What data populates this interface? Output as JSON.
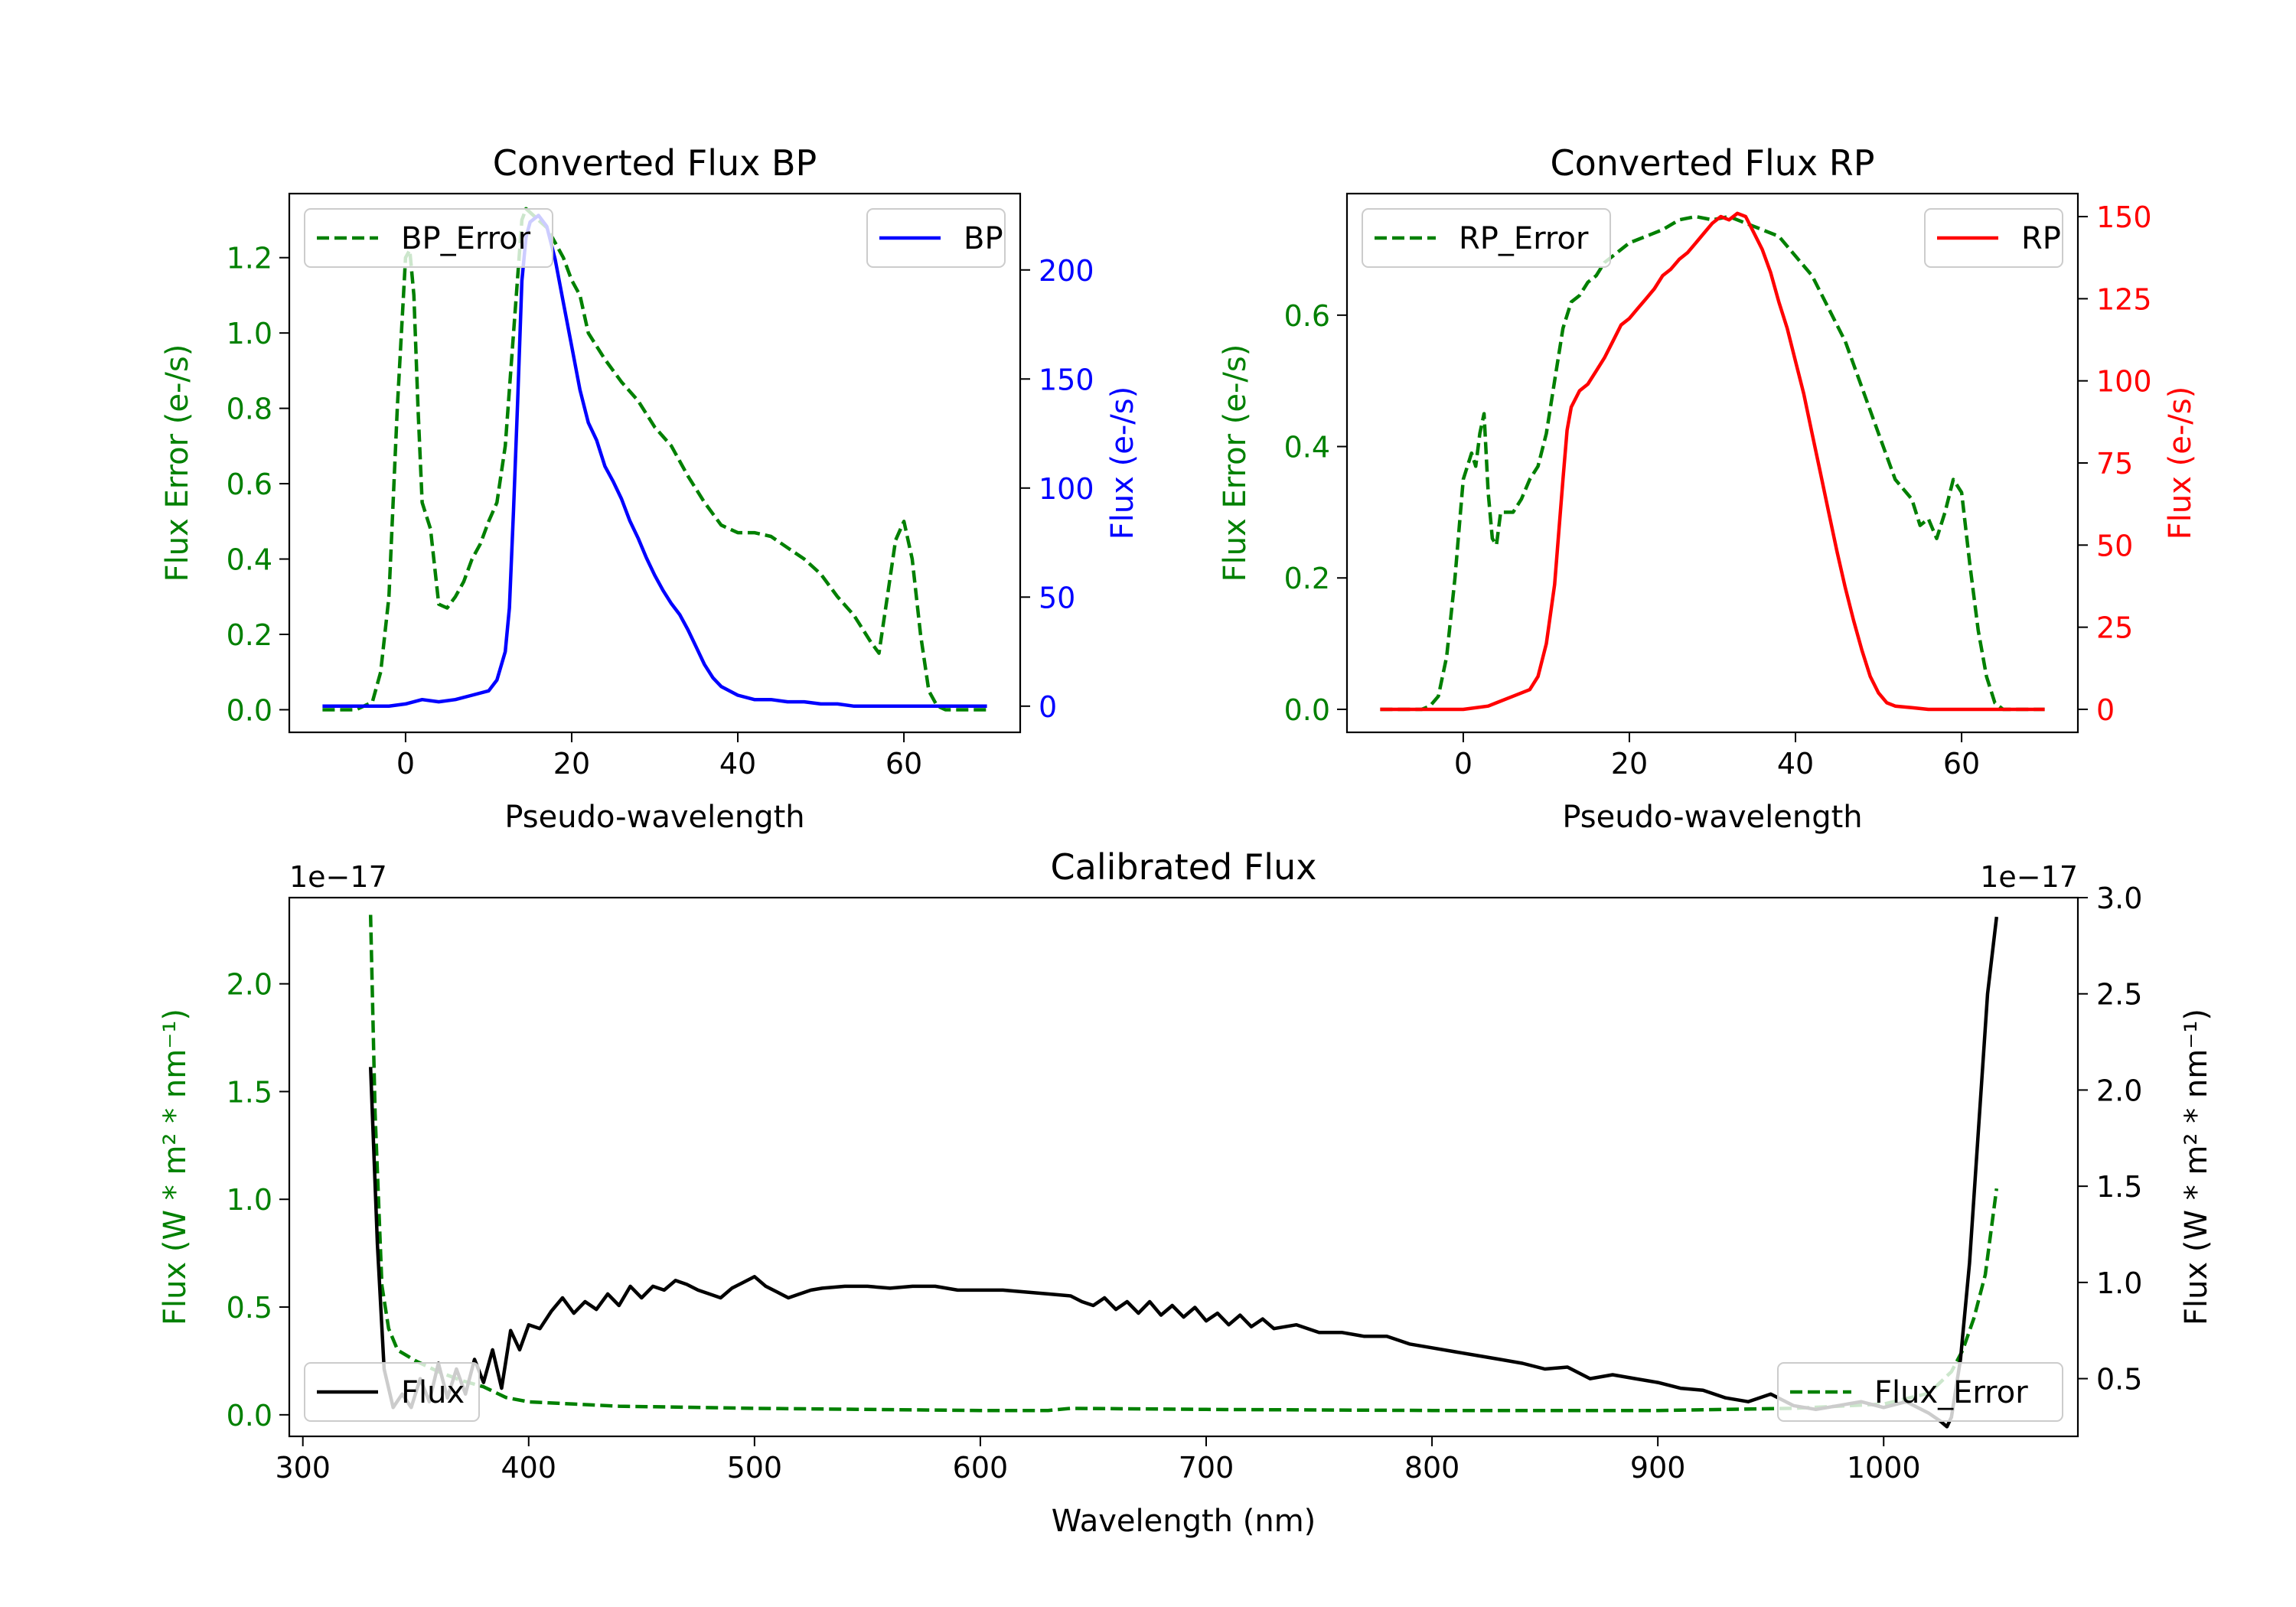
{
  "colors": {
    "error": "#008000",
    "bp": "#0000ff",
    "rp": "#ff0000",
    "flux": "#000000",
    "axis": "#000000"
  },
  "chart_data": [
    {
      "type": "line",
      "title": "Converted Flux BP",
      "xlabel": "Pseudo-wavelength",
      "ylabel_left": "Flux Error (e-/s)",
      "ylabel_right": "Flux (e-/s)",
      "xlim": [
        -14,
        74
      ],
      "xticks": [
        0,
        20,
        40,
        60
      ],
      "ylim_left": [
        -0.06,
        1.37
      ],
      "yticks_left": [
        0.0,
        0.2,
        0.4,
        0.6,
        0.8,
        1.0,
        1.2
      ],
      "ylim_right": [
        -12,
        235
      ],
      "yticks_right": [
        0,
        50,
        100,
        150,
        200
      ],
      "series": [
        {
          "name": "BP_Error",
          "axis": "left",
          "style": "dashed",
          "color": "#008000",
          "x": [
            -10,
            -6,
            -4,
            -3,
            -2,
            -1,
            0,
            0.5,
            1,
            1.5,
            2,
            3,
            4,
            5,
            6,
            7,
            8,
            9,
            10,
            11,
            12,
            13,
            14,
            14.5,
            15,
            16,
            17,
            18,
            19,
            20,
            21,
            22,
            24,
            26,
            28,
            30,
            32,
            34,
            36,
            38,
            40,
            42,
            44,
            46,
            48,
            50,
            52,
            54,
            56,
            57,
            58,
            59,
            60,
            61,
            62,
            63,
            64,
            65,
            66,
            68,
            70
          ],
          "y": [
            0,
            0,
            0.02,
            0.1,
            0.3,
            0.8,
            1.2,
            1.22,
            1.1,
            0.8,
            0.55,
            0.48,
            0.28,
            0.27,
            0.3,
            0.34,
            0.4,
            0.44,
            0.5,
            0.55,
            0.7,
            1.0,
            1.3,
            1.33,
            1.32,
            1.3,
            1.28,
            1.24,
            1.2,
            1.14,
            1.1,
            1.0,
            0.93,
            0.87,
            0.82,
            0.75,
            0.7,
            0.62,
            0.55,
            0.49,
            0.47,
            0.47,
            0.46,
            0.43,
            0.4,
            0.36,
            0.3,
            0.25,
            0.18,
            0.15,
            0.3,
            0.45,
            0.5,
            0.4,
            0.2,
            0.05,
            0.01,
            0,
            0,
            0,
            0
          ]
        },
        {
          "name": "BP",
          "axis": "right",
          "style": "solid",
          "color": "#0000ff",
          "x": [
            -10,
            -4,
            -2,
            0,
            2,
            4,
            6,
            8,
            10,
            11,
            12,
            12.5,
            13,
            13.5,
            14,
            14.5,
            15,
            16,
            17,
            18,
            19,
            20,
            21,
            22,
            23,
            24,
            25,
            26,
            27,
            28,
            29,
            30,
            31,
            32,
            33,
            34,
            35,
            36,
            37,
            38,
            40,
            42,
            44,
            46,
            48,
            50,
            52,
            54,
            56,
            58,
            60,
            62,
            64,
            66,
            68,
            70
          ],
          "y": [
            0,
            0,
            0,
            1,
            3,
            2,
            3,
            5,
            7,
            12,
            25,
            45,
            90,
            140,
            195,
            215,
            222,
            225,
            220,
            205,
            185,
            165,
            145,
            130,
            122,
            110,
            103,
            95,
            85,
            77,
            68,
            60,
            53,
            47,
            42,
            35,
            27,
            19,
            13,
            9,
            5,
            3,
            3,
            2,
            2,
            1,
            1,
            0,
            0,
            0,
            0,
            0,
            0,
            0,
            0,
            0
          ]
        }
      ],
      "legend": [
        "BP_Error",
        "BP"
      ]
    },
    {
      "type": "line",
      "title": "Converted Flux RP",
      "xlabel": "Pseudo-wavelength",
      "ylabel_left": "Flux Error (e-/s)",
      "ylabel_right": "Flux (e-/s)",
      "xlim": [
        -14,
        74
      ],
      "xticks": [
        0,
        20,
        40,
        60
      ],
      "ylim_left": [
        -0.035,
        0.785
      ],
      "yticks_left": [
        0.0,
        0.2,
        0.4,
        0.6
      ],
      "ylim_right": [
        -7,
        157
      ],
      "yticks_right": [
        0,
        25,
        50,
        75,
        100,
        125,
        150
      ],
      "series": [
        {
          "name": "RP_Error",
          "axis": "left",
          "style": "dashed",
          "color": "#008000",
          "x": [
            -10,
            -5,
            -4,
            -3,
            -2,
            -1,
            0,
            1,
            1.5,
            2,
            2.5,
            3,
            3.5,
            4,
            4.5,
            5,
            6,
            7,
            8,
            9,
            10,
            11,
            12,
            13,
            14,
            15,
            16,
            17,
            18,
            20,
            22,
            24,
            26,
            28,
            30,
            32,
            34,
            36,
            38,
            40,
            42,
            44,
            46,
            48,
            50,
            52,
            54,
            55,
            56,
            57,
            58,
            59,
            60,
            61,
            62,
            63,
            64,
            65,
            66,
            68,
            70
          ],
          "y": [
            0,
            0,
            0.005,
            0.02,
            0.08,
            0.2,
            0.35,
            0.39,
            0.37,
            0.42,
            0.45,
            0.33,
            0.26,
            0.25,
            0.3,
            0.3,
            0.3,
            0.32,
            0.35,
            0.37,
            0.42,
            0.5,
            0.58,
            0.62,
            0.63,
            0.65,
            0.66,
            0.68,
            0.69,
            0.71,
            0.72,
            0.73,
            0.745,
            0.75,
            0.745,
            0.75,
            0.74,
            0.73,
            0.72,
            0.69,
            0.66,
            0.61,
            0.56,
            0.49,
            0.42,
            0.35,
            0.32,
            0.28,
            0.29,
            0.26,
            0.3,
            0.35,
            0.33,
            0.22,
            0.12,
            0.05,
            0.01,
            0,
            0,
            0,
            0
          ]
        },
        {
          "name": "RP",
          "axis": "right",
          "style": "solid",
          "color": "#ff0000",
          "x": [
            -10,
            -4,
            0,
            3,
            4,
            6,
            8,
            9,
            10,
            11,
            12,
            12.5,
            13,
            14,
            15,
            16,
            17,
            18,
            19,
            20,
            21,
            22,
            23,
            24,
            25,
            26,
            27,
            28,
            29,
            30,
            31,
            32,
            33,
            34,
            35,
            36,
            37,
            38,
            39,
            40,
            41,
            42,
            43,
            44,
            45,
            46,
            47,
            48,
            49,
            50,
            51,
            52,
            54,
            56,
            60,
            70
          ],
          "y": [
            0,
            0,
            0,
            1,
            2,
            4,
            6,
            10,
            20,
            38,
            70,
            85,
            92,
            97,
            99,
            103,
            107,
            112,
            117,
            119,
            122,
            125,
            128,
            132,
            134,
            137,
            139,
            142,
            145,
            148,
            150,
            149,
            151,
            150,
            145,
            140,
            133,
            124,
            116,
            106,
            96,
            84,
            72,
            60,
            48,
            37,
            27,
            18,
            10,
            5,
            2,
            1,
            0.5,
            0,
            0,
            0
          ]
        }
      ],
      "legend": [
        "RP_Error",
        "RP"
      ]
    },
    {
      "type": "line",
      "title": "Calibrated Flux",
      "xlabel": "Wavelength (nm)",
      "ylabel_left": "Flux (W * m² * nm⁻¹)",
      "ylabel_right": "Flux (W * m² * nm⁻¹)",
      "offset_left": "1e−17",
      "offset_right": "1e−17",
      "xlim": [
        294,
        1086
      ],
      "xticks": [
        300,
        400,
        500,
        600,
        700,
        800,
        900,
        1000
      ],
      "ylim_left": [
        -0.1,
        2.4
      ],
      "yticks_left": [
        0.0,
        0.5,
        1.0,
        1.5,
        2.0
      ],
      "ylim_right": [
        0.2,
        3.0
      ],
      "yticks_right": [
        0.5,
        1.0,
        1.5,
        2.0,
        2.5,
        3.0
      ],
      "series": [
        {
          "name": "Flux_Error",
          "axis": "left",
          "style": "dashed",
          "color": "#008000",
          "x": [
            330,
            332,
            335,
            338,
            342,
            350,
            360,
            370,
            380,
            390,
            400,
            420,
            440,
            500,
            600,
            630,
            640,
            700,
            800,
            900,
            960,
            1000,
            1020,
            1030,
            1035,
            1040,
            1045,
            1050
          ],
          "y": [
            2.32,
            1.4,
            0.6,
            0.4,
            0.3,
            0.25,
            0.2,
            0.16,
            0.13,
            0.08,
            0.06,
            0.05,
            0.04,
            0.03,
            0.02,
            0.02,
            0.03,
            0.025,
            0.02,
            0.02,
            0.03,
            0.05,
            0.1,
            0.2,
            0.3,
            0.45,
            0.65,
            1.05
          ]
        },
        {
          "name": "Flux",
          "axis": "right",
          "style": "solid",
          "color": "#000000",
          "x": [
            330,
            333,
            336,
            340,
            344,
            348,
            352,
            356,
            360,
            364,
            368,
            372,
            376,
            380,
            384,
            388,
            392,
            396,
            400,
            405,
            410,
            415,
            420,
            425,
            430,
            435,
            440,
            445,
            450,
            455,
            460,
            465,
            470,
            475,
            480,
            485,
            490,
            495,
            500,
            505,
            510,
            515,
            520,
            525,
            530,
            540,
            550,
            560,
            570,
            580,
            590,
            600,
            610,
            620,
            630,
            640,
            645,
            650,
            655,
            660,
            665,
            670,
            675,
            680,
            685,
            690,
            695,
            700,
            705,
            710,
            715,
            720,
            725,
            730,
            740,
            750,
            760,
            770,
            780,
            790,
            800,
            810,
            820,
            830,
            840,
            850,
            860,
            870,
            880,
            890,
            900,
            910,
            920,
            930,
            940,
            950,
            960,
            970,
            980,
            990,
            1000,
            1010,
            1020,
            1025,
            1028,
            1030,
            1034,
            1038,
            1042,
            1046,
            1050
          ],
          "y": [
            2.12,
            1.2,
            0.55,
            0.35,
            0.42,
            0.35,
            0.5,
            0.38,
            0.58,
            0.4,
            0.55,
            0.42,
            0.6,
            0.48,
            0.65,
            0.45,
            0.75,
            0.65,
            0.78,
            0.76,
            0.85,
            0.92,
            0.84,
            0.9,
            0.86,
            0.94,
            0.88,
            0.98,
            0.92,
            0.98,
            0.96,
            1.01,
            0.99,
            0.96,
            0.94,
            0.92,
            0.97,
            1.0,
            1.03,
            0.98,
            0.95,
            0.92,
            0.94,
            0.96,
            0.97,
            0.98,
            0.98,
            0.97,
            0.98,
            0.98,
            0.96,
            0.96,
            0.96,
            0.95,
            0.94,
            0.93,
            0.9,
            0.88,
            0.92,
            0.86,
            0.9,
            0.84,
            0.9,
            0.83,
            0.88,
            0.82,
            0.87,
            0.8,
            0.84,
            0.78,
            0.83,
            0.77,
            0.81,
            0.76,
            0.78,
            0.74,
            0.74,
            0.72,
            0.72,
            0.68,
            0.66,
            0.64,
            0.62,
            0.6,
            0.58,
            0.55,
            0.56,
            0.5,
            0.52,
            0.5,
            0.48,
            0.45,
            0.44,
            0.4,
            0.38,
            0.42,
            0.36,
            0.34,
            0.36,
            0.38,
            0.35,
            0.38,
            0.32,
            0.28,
            0.25,
            0.3,
            0.6,
            1.1,
            1.8,
            2.5,
            2.9
          ]
        }
      ],
      "legend": [
        "Flux",
        "Flux_Error"
      ]
    }
  ]
}
